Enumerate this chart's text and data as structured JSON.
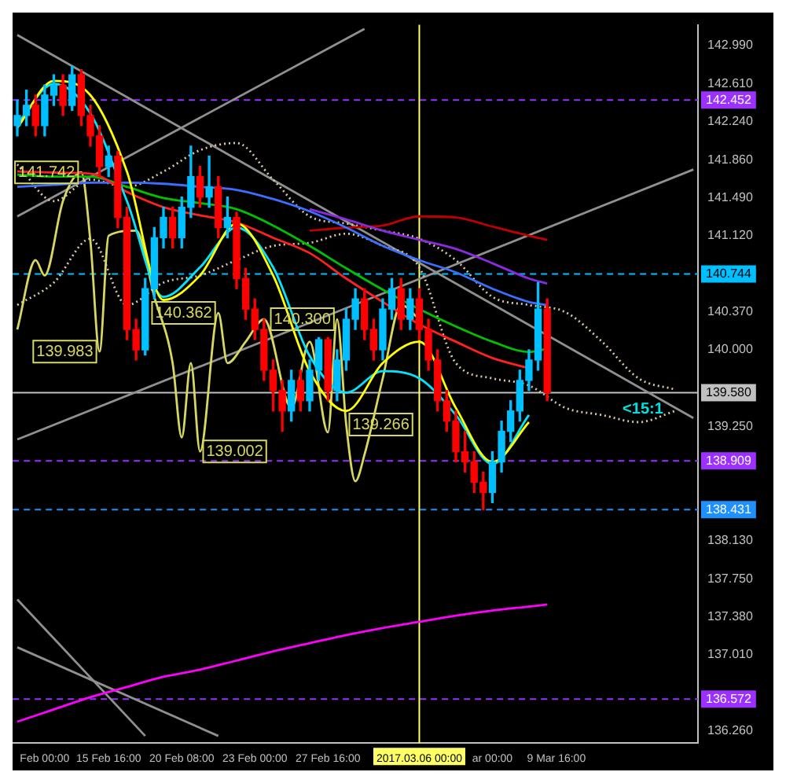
{
  "chart_data": {
    "type": "candlestick",
    "marker": "none",
    "categories": [
      null,
      null,
      null,
      "Feb 00:00",
      null,
      null,
      null,
      null,
      null,
      null,
      "15 Feb 16:00",
      null,
      null,
      null,
      null,
      null,
      null,
      null,
      "20 Feb 08:00",
      null,
      null,
      null,
      null,
      null,
      null,
      null,
      "23 Feb 00:00",
      null,
      null,
      null,
      null,
      null,
      null,
      null,
      "27 Feb 16:00",
      null,
      null,
      null,
      null,
      null,
      null,
      null,
      null,
      null,
      "2017.03.06 00:00",
      null,
      null,
      null,
      null,
      null,
      null,
      null,
      "ar 00:00",
      null,
      null,
      null,
      null,
      null,
      null,
      "9 Mar 16:00",
      null,
      null,
      null,
      null,
      null,
      null,
      null,
      null,
      null,
      null,
      null,
      null,
      null,
      null,
      null
    ],
    "ohlc": [
      [
        142.2,
        142.45,
        142.1,
        142.3
      ],
      [
        142.3,
        142.55,
        142.2,
        142.4
      ],
      [
        142.4,
        142.5,
        142.1,
        142.2
      ],
      [
        142.2,
        142.6,
        142.1,
        142.5
      ],
      [
        142.5,
        142.7,
        142.4,
        142.6
      ],
      [
        142.6,
        142.7,
        142.3,
        142.4
      ],
      [
        142.4,
        142.78,
        142.35,
        142.7
      ],
      [
        142.7,
        142.75,
        142.2,
        142.3
      ],
      [
        142.3,
        142.4,
        142.0,
        142.1
      ],
      [
        142.1,
        142.2,
        141.7,
        141.8
      ],
      [
        141.8,
        142.0,
        141.7,
        141.9
      ],
      [
        141.9,
        141.95,
        141.2,
        141.3
      ],
      [
        141.3,
        141.4,
        140.1,
        140.2
      ],
      [
        140.2,
        140.3,
        139.9,
        140.0
      ],
      [
        140.0,
        140.7,
        139.95,
        140.6
      ],
      [
        140.6,
        141.2,
        140.5,
        141.1
      ],
      [
        141.1,
        141.4,
        141.0,
        141.3
      ],
      [
        141.3,
        141.4,
        141.0,
        141.1
      ],
      [
        141.1,
        141.5,
        141.0,
        141.4
      ],
      [
        141.4,
        142.0,
        141.3,
        141.7
      ],
      [
        141.7,
        141.8,
        141.4,
        141.5
      ],
      [
        141.5,
        141.9,
        141.4,
        141.6
      ],
      [
        141.6,
        141.7,
        141.1,
        141.2
      ],
      [
        141.2,
        141.5,
        141.1,
        141.3
      ],
      [
        141.3,
        141.35,
        140.6,
        140.7
      ],
      [
        140.7,
        140.8,
        140.3,
        140.4
      ],
      [
        140.4,
        140.5,
        140.1,
        140.2
      ],
      [
        140.2,
        140.3,
        139.7,
        139.8
      ],
      [
        139.8,
        139.9,
        139.4,
        139.6
      ],
      [
        139.6,
        139.7,
        139.2,
        139.4
      ],
      [
        139.4,
        139.8,
        139.3,
        139.7
      ],
      [
        139.7,
        139.8,
        139.4,
        139.5
      ],
      [
        139.5,
        139.9,
        139.4,
        139.8
      ],
      [
        139.8,
        140.12,
        139.7,
        140.1
      ],
      [
        140.1,
        140.12,
        139.5,
        139.6
      ],
      [
        139.6,
        140.0,
        139.5,
        139.9
      ],
      [
        139.9,
        140.4,
        139.8,
        140.3
      ],
      [
        140.3,
        140.6,
        140.2,
        140.5
      ],
      [
        140.5,
        140.6,
        140.1,
        140.2
      ],
      [
        140.2,
        140.3,
        139.9,
        140.0
      ],
      [
        140.0,
        140.5,
        139.9,
        140.4
      ],
      [
        140.4,
        140.7,
        140.3,
        140.6
      ],
      [
        140.6,
        140.7,
        140.2,
        140.3
      ],
      [
        140.3,
        140.6,
        140.2,
        140.5
      ],
      [
        140.5,
        140.6,
        140.1,
        140.2
      ],
      [
        140.2,
        140.3,
        139.8,
        139.9
      ],
      [
        139.9,
        140.0,
        139.4,
        139.5
      ],
      [
        139.5,
        139.6,
        139.2,
        139.3
      ],
      [
        139.3,
        139.4,
        138.9,
        139.0
      ],
      [
        139.0,
        139.2,
        138.8,
        138.9
      ],
      [
        138.9,
        139.0,
        138.6,
        138.7
      ],
      [
        138.7,
        138.8,
        138.431,
        138.6
      ],
      [
        138.6,
        139.0,
        138.5,
        138.9
      ],
      [
        138.9,
        139.3,
        138.8,
        139.2
      ],
      [
        139.2,
        139.5,
        139.1,
        139.4
      ],
      [
        139.4,
        139.8,
        139.3,
        139.7
      ],
      [
        139.7,
        140.0,
        139.6,
        139.9
      ],
      [
        139.9,
        140.66,
        139.8,
        140.4
      ],
      [
        140.4,
        140.5,
        139.5,
        139.58
      ],
      null,
      null,
      null,
      null,
      null,
      null,
      null,
      null,
      null,
      null,
      null,
      null,
      null,
      null,
      null,
      null
    ],
    "colors": [
      "#00bfff",
      "#00bfff",
      "#ff0000",
      "#00bfff",
      "#00bfff",
      "#ff0000",
      "#00bfff",
      "#ff0000",
      "#ff0000",
      "#ff0000",
      "#00bfff",
      "#ff0000",
      "#ff0000",
      "#ff0000",
      "#00bfff",
      "#00bfff",
      "#00bfff",
      "#ff0000",
      "#00bfff",
      "#00bfff",
      "#ff0000",
      "#00bfff",
      "#ff0000",
      "#00bfff",
      "#ff0000",
      "#ff0000",
      "#ff0000",
      "#ff0000",
      "#ff0000",
      "#ff0000",
      "#00bfff",
      "#ff0000",
      "#00bfff",
      "#00bfff",
      "#ff0000",
      "#00bfff",
      "#00bfff",
      "#00bfff",
      "#ff0000",
      "#ff0000",
      "#00bfff",
      "#00bfff",
      "#ff0000",
      "#00bfff",
      "#ff0000",
      "#ff0000",
      "#ff0000",
      "#ff0000",
      "#ff0000",
      "#ff0000",
      "#ff0000",
      "#ff0000",
      "#00bfff",
      "#00bfff",
      "#00bfff",
      "#00bfff",
      "#00bfff",
      "#00bfff",
      "#ff0000",
      null,
      null,
      null,
      null,
      null,
      null,
      null,
      null,
      null,
      null,
      null,
      null,
      null,
      null,
      null,
      null
    ],
    "series": [
      {
        "type": "line",
        "color": "#ffff00",
        "values": [
          142.18,
          null,
          null,
          null,
          142.64,
          null,
          null,
          null,
          142.5,
          null,
          null,
          null,
          141.75,
          null,
          null,
          null,
          140.49,
          null,
          null,
          null,
          140.73,
          null,
          null,
          null,
          141.24,
          null,
          null,
          null,
          140.73,
          null,
          null,
          null,
          139.79,
          null,
          null,
          null,
          139.4,
          null,
          null,
          null,
          139.87,
          null,
          null,
          null,
          140.08,
          null,
          null,
          null,
          139.43,
          null,
          null,
          null,
          138.9,
          null,
          null,
          null,
          139.29,
          null,
          null,
          null,
          null,
          null,
          null,
          null,
          null,
          null,
          null,
          null,
          null,
          null,
          null,
          null,
          null,
          null,
          null
        ]
      },
      {
        "type": "line",
        "color": "#00e5ff",
        "values": [
          142.22,
          null,
          null,
          null,
          142.61,
          null,
          null,
          null,
          142.32,
          null,
          null,
          null,
          141.46,
          null,
          null,
          null,
          140.52,
          null,
          null,
          null,
          140.81,
          null,
          null,
          null,
          141.2,
          null,
          null,
          null,
          140.81,
          null,
          null,
          null,
          139.94,
          null,
          null,
          null,
          139.58,
          null,
          null,
          null,
          139.79,
          null,
          null,
          null,
          139.72,
          null,
          null,
          null,
          139.36,
          null,
          null,
          null,
          138.88,
          null,
          null,
          null,
          139.36,
          null,
          null,
          null,
          null,
          null,
          null,
          null,
          null,
          null,
          null,
          null,
          null,
          null,
          null,
          null,
          null,
          null,
          null
        ]
      },
      {
        "type": "line",
        "color": "#ff2020",
        "values": [
          141.75,
          null,
          null,
          null,
          141.74,
          null,
          null,
          null,
          141.73,
          null,
          null,
          null,
          141.55,
          null,
          null,
          null,
          141.4,
          null,
          null,
          null,
          141.32,
          null,
          null,
          null,
          141.25,
          null,
          null,
          null,
          141.1,
          null,
          null,
          null,
          140.95,
          null,
          null,
          null,
          140.7,
          null,
          null,
          null,
          140.47,
          null,
          null,
          null,
          140.25,
          null,
          null,
          null,
          140.08,
          null,
          null,
          null,
          139.92,
          null,
          null,
          null,
          139.82,
          null,
          null,
          null,
          null,
          null,
          null,
          null,
          null,
          null,
          null,
          null,
          null,
          null,
          null,
          null,
          null,
          null,
          null
        ]
      },
      {
        "type": "line",
        "color": "#00c000",
        "values": [
          141.72,
          null,
          null,
          null,
          141.7,
          null,
          null,
          null,
          141.7,
          null,
          null,
          null,
          141.6,
          null,
          null,
          null,
          141.49,
          null,
          null,
          null,
          141.44,
          null,
          null,
          null,
          141.38,
          null,
          null,
          null,
          141.22,
          null,
          null,
          null,
          141.02,
          null,
          null,
          null,
          140.8,
          null,
          null,
          null,
          140.59,
          null,
          null,
          null,
          140.4,
          null,
          null,
          null,
          140.23,
          null,
          null,
          null,
          140.08,
          null,
          null,
          null,
          139.98,
          null,
          140.01,
          null,
          null,
          null,
          null,
          null,
          null,
          null,
          null,
          null,
          null,
          null,
          null,
          null,
          null,
          null,
          null
        ]
      },
      {
        "type": "line",
        "color": "#3a6fff",
        "values": [
          141.6,
          null,
          null,
          null,
          141.62,
          null,
          null,
          null,
          141.64,
          null,
          null,
          null,
          141.64,
          null,
          null,
          null,
          141.63,
          null,
          null,
          null,
          141.6,
          null,
          null,
          null,
          141.57,
          null,
          null,
          null,
          141.48,
          null,
          null,
          null,
          141.36,
          null,
          null,
          null,
          141.2,
          null,
          null,
          null,
          141.02,
          null,
          null,
          null,
          140.88,
          null,
          null,
          null,
          140.76,
          null,
          null,
          null,
          140.6,
          null,
          null,
          null,
          140.47,
          null,
          140.44,
          null,
          null,
          null,
          null,
          null,
          null,
          null,
          null,
          null,
          null,
          null,
          null,
          null,
          null,
          null,
          null
        ]
      },
      {
        "type": "line",
        "color": "#8a2be2",
        "values": [
          null,
          null,
          null,
          null,
          null,
          null,
          null,
          null,
          null,
          null,
          null,
          null,
          null,
          null,
          null,
          null,
          null,
          null,
          null,
          null,
          null,
          null,
          null,
          null,
          null,
          null,
          null,
          null,
          null,
          null,
          null,
          null,
          141.38,
          null,
          null,
          null,
          141.28,
          null,
          null,
          null,
          141.17,
          null,
          null,
          null,
          141.08,
          null,
          null,
          null,
          140.99,
          null,
          null,
          null,
          140.85,
          null,
          null,
          null,
          140.7,
          null,
          140.65,
          null,
          null,
          null,
          null,
          null,
          null,
          null,
          null,
          null,
          null,
          null,
          null,
          null,
          null,
          null,
          null
        ]
      },
      {
        "type": "line",
        "color": "#c00000",
        "values": [
          null,
          null,
          null,
          null,
          null,
          null,
          null,
          null,
          null,
          null,
          null,
          null,
          null,
          null,
          null,
          null,
          null,
          null,
          null,
          null,
          null,
          null,
          null,
          null,
          null,
          null,
          null,
          null,
          null,
          null,
          null,
          null,
          141.17,
          null,
          null,
          null,
          141.2,
          null,
          null,
          null,
          141.22,
          null,
          null,
          null,
          141.31,
          null,
          null,
          null,
          141.3,
          null,
          null,
          null,
          141.21,
          null,
          null,
          null,
          141.12,
          null,
          141.08,
          null,
          null,
          null,
          null,
          null,
          null,
          null,
          null,
          null,
          null,
          null,
          null,
          null,
          null,
          null,
          null
        ]
      },
      {
        "type": "line",
        "color": "#ff00ff",
        "values": [
          136.35,
          null,
          null,
          null,
          136.47,
          null,
          null,
          null,
          136.59,
          null,
          null,
          null,
          136.69,
          null,
          null,
          null,
          136.79,
          null,
          null,
          null,
          136.86,
          null,
          null,
          null,
          136.95,
          null,
          null,
          null,
          137.04,
          null,
          null,
          null,
          137.12,
          null,
          null,
          null,
          137.2,
          null,
          null,
          null,
          137.27,
          null,
          null,
          null,
          137.33,
          null,
          null,
          null,
          137.39,
          null,
          null,
          null,
          137.44,
          null,
          null,
          null,
          137.48,
          null,
          137.5,
          null,
          null,
          null,
          null,
          null,
          null,
          null,
          null,
          null,
          null,
          null,
          null,
          null,
          null,
          null,
          null
        ]
      },
      {
        "type": "line",
        "color": "#d8c8a8",
        "line_style": "dotted",
        "values": [
          141.82,
          null,
          null,
          null,
          141.46,
          null,
          null,
          null,
          141.67,
          null,
          null,
          null,
          141.6,
          null,
          null,
          null,
          141.75,
          null,
          null,
          null,
          141.96,
          null,
          null,
          null,
          142.03,
          null,
          null,
          null,
          141.67,
          null,
          null,
          null,
          141.31,
          null,
          null,
          null,
          141.24,
          null,
          null,
          null,
          141.17,
          null,
          null,
          null,
          141.09,
          null,
          null,
          null,
          140.88,
          null,
          null,
          null,
          140.52,
          null,
          null,
          null,
          140.44,
          null,
          null,
          null,
          140.37,
          null,
          null,
          null,
          140.08,
          null,
          null,
          null,
          139.72,
          null,
          null,
          null,
          139.61,
          null,
          null
        ]
      },
      {
        "type": "line",
        "color": "#d8c8a8",
        "line_style": "dotted",
        "values": [
          140.44,
          null,
          null,
          null,
          140.66,
          null,
          null,
          null,
          141.09,
          null,
          null,
          null,
          140.44,
          null,
          null,
          null,
          140.66,
          null,
          null,
          null,
          140.73,
          null,
          null,
          null,
          140.88,
          null,
          null,
          null,
          141.02,
          null,
          null,
          null,
          141.05,
          null,
          null,
          null,
          141.14,
          null,
          null,
          null,
          141.02,
          null,
          null,
          null,
          140.81,
          null,
          null,
          null,
          139.87,
          null,
          null,
          null,
          139.72,
          null,
          null,
          null,
          139.65,
          null,
          null,
          null,
          139.43,
          null,
          null,
          null,
          139.36,
          null,
          null,
          null,
          139.29,
          null,
          null,
          null,
          139.4,
          null,
          null
        ]
      },
      {
        "type": "line",
        "color": "#d8d860",
        "values": [
          140.2,
          null,
          140.88,
          140.73,
          null,
          141.46,
          null,
          141.742,
          141.07,
          139.983,
          141.12,
          null,
          null,
          141.17,
          null,
          140.52,
          null,
          139.87,
          139.14,
          139.87,
          139.002,
          null,
          140.362,
          139.87,
          null,
          140.08,
          null,
          140.3,
          null,
          null,
          139.43,
          null,
          140.08,
          null,
          139.19,
          140.3,
          139.266,
          138.71,
          138.97,
          null,
          139.72,
          null,
          140.44,
          null,
          140.3,
          null,
          null,
          null,
          null,
          null,
          null,
          null,
          null,
          null,
          null,
          null,
          null,
          null,
          null,
          null,
          null,
          null,
          null,
          null,
          null,
          null,
          null,
          null,
          null,
          null,
          null,
          null,
          null,
          null,
          null
        ],
        "value_labels": [
          null,
          null,
          null,
          null,
          null,
          null,
          null,
          "141.742",
          null,
          "139.983",
          null,
          null,
          null,
          null,
          null,
          null,
          null,
          null,
          null,
          null,
          "139.002",
          null,
          "140.362",
          null,
          null,
          null,
          null,
          null,
          null,
          null,
          null,
          null,
          null,
          null,
          null,
          "140.300",
          "139.266",
          null,
          null,
          null,
          null,
          null,
          null,
          null,
          null,
          null,
          null,
          null,
          null,
          null,
          null,
          null,
          null,
          null,
          null,
          null,
          null,
          null,
          null,
          null,
          null,
          null,
          null,
          null,
          null,
          null,
          null,
          null,
          null,
          null,
          null,
          null,
          null,
          null,
          null
        ]
      },
      {
        "type": "line",
        "color": "#909090",
        "values": [
          143.09,
          null,
          null,
          null,
          null,
          null,
          null,
          null,
          null,
          null,
          null,
          null,
          null,
          null,
          null,
          null,
          null,
          null,
          null,
          null,
          null,
          null,
          null,
          null,
          null,
          null,
          null,
          null,
          null,
          null,
          null,
          null,
          null,
          null,
          null,
          null,
          null,
          null,
          null,
          null,
          null,
          null,
          null,
          null,
          null,
          null,
          null,
          null,
          null,
          null,
          null,
          null,
          null,
          null,
          null,
          null,
          null,
          null,
          null,
          null,
          null,
          null,
          null,
          null,
          null,
          null,
          null,
          null,
          null,
          null,
          null,
          null,
          null,
          null,
          139.33
        ]
      },
      {
        "type": "line",
        "color": "#909090",
        "values": [
          139.12,
          null,
          null,
          null,
          null,
          null,
          null,
          null,
          null,
          null,
          null,
          null,
          null,
          null,
          null,
          null,
          null,
          null,
          null,
          null,
          null,
          null,
          null,
          null,
          null,
          null,
          null,
          null,
          null,
          null,
          null,
          null,
          null,
          null,
          null,
          null,
          null,
          null,
          null,
          null,
          null,
          null,
          null,
          null,
          null,
          null,
          null,
          null,
          null,
          null,
          null,
          null,
          null,
          null,
          null,
          null,
          null,
          null,
          null,
          null,
          null,
          null,
          null,
          null,
          null,
          null,
          null,
          null,
          null,
          null,
          null,
          null,
          null,
          null,
          141.77
        ]
      },
      {
        "type": "line",
        "color": "#909090",
        "values": [
          141.31,
          null,
          null,
          null,
          null,
          null,
          null,
          null,
          null,
          null,
          null,
          null,
          null,
          null,
          null,
          null,
          null,
          null,
          null,
          null,
          null,
          null,
          null,
          null,
          null,
          null,
          null,
          null,
          null,
          null,
          null,
          null,
          null,
          null,
          null,
          null,
          null,
          null,
          143.15,
          null,
          null,
          null,
          null,
          null,
          null,
          null,
          null,
          null,
          null,
          null,
          null,
          null,
          null,
          null,
          null,
          null,
          null,
          null,
          null,
          null,
          null,
          null,
          null,
          null,
          null,
          null,
          null,
          null,
          null,
          null,
          null,
          null,
          null,
          null,
          null
        ]
      },
      {
        "type": "line",
        "color": "#909090",
        "values": [
          137.55,
          null,
          null,
          null,
          null,
          null,
          null,
          null,
          null,
          null,
          null,
          null,
          null,
          null,
          136.21,
          null,
          null,
          null,
          null,
          null,
          null,
          null,
          null,
          null,
          null,
          null,
          null,
          null,
          null,
          null,
          null,
          null,
          null,
          null,
          null,
          null,
          null,
          null,
          null,
          null,
          null,
          null,
          null,
          null,
          null,
          null,
          null,
          null,
          null,
          null,
          null,
          null,
          null,
          null,
          null,
          null,
          null,
          null,
          null,
          null,
          null,
          null,
          null,
          null,
          null,
          null,
          null,
          null,
          null,
          null,
          null,
          null,
          null,
          null,
          null
        ]
      },
      {
        "type": "line",
        "color": "#909090",
        "values": [
          137.08,
          null,
          null,
          null,
          null,
          null,
          null,
          null,
          null,
          null,
          null,
          null,
          null,
          null,
          null,
          null,
          null,
          null,
          null,
          null,
          null,
          null,
          136.21,
          null,
          null,
          null,
          null,
          null,
          null,
          null,
          null,
          null,
          null,
          null,
          null,
          null,
          null,
          null,
          null,
          null,
          null,
          null,
          null,
          null,
          null,
          null,
          null,
          null,
          null,
          null,
          null,
          null,
          null,
          null,
          null,
          null,
          null,
          null,
          null,
          null,
          null,
          null,
          null,
          null,
          null,
          null,
          null,
          null,
          null,
          null,
          null,
          null,
          null,
          null,
          null
        ]
      }
    ],
    "ylim": [
      136.14,
      143.19
    ],
    "yticks": [
      {
        "value": 142.99,
        "label": "142.990"
      },
      {
        "value": 142.61,
        "label": "142.610"
      },
      {
        "value": 142.24,
        "label": "142.240"
      },
      {
        "value": 141.86,
        "label": "141.860"
      },
      {
        "value": 141.49,
        "label": "141.490"
      },
      {
        "value": 141.12,
        "label": "141.120"
      },
      {
        "value": 140.37,
        "label": "140.370"
      },
      {
        "value": 140.0,
        "label": "140.000"
      },
      {
        "value": 139.25,
        "label": "139.250"
      },
      {
        "value": 138.13,
        "label": "138.130"
      },
      {
        "value": 137.75,
        "label": "137.750"
      },
      {
        "value": 137.38,
        "label": "137.380"
      },
      {
        "value": 137.01,
        "label": "137.010"
      },
      {
        "value": 136.26,
        "label": "136.260"
      }
    ],
    "ref_lines": [
      {
        "axis": "y",
        "value": 142.452,
        "label": "142.452",
        "color": "#9b30ff",
        "line_style": "dashed"
      },
      {
        "axis": "y",
        "value": 140.744,
        "label": "140.744",
        "color": "#00bfff",
        "line_style": "dashed"
      },
      {
        "axis": "y",
        "value": 139.58,
        "label": "139.580",
        "color": "#c0c0c0",
        "line_style": "solid"
      },
      {
        "axis": "y",
        "value": 138.909,
        "label": "138.909",
        "color": "#9b30ff",
        "line_style": "dashed"
      },
      {
        "axis": "y",
        "value": 138.431,
        "label": "138.431",
        "color": "#1e90ff",
        "line_style": "dashed"
      },
      {
        "axis": "y",
        "value": 136.572,
        "label": "136.572",
        "color": "#9b30ff",
        "line_style": "dashed"
      },
      {
        "axis": "x",
        "value": "2017.03.06 00:00",
        "color": "#ffff66",
        "line_style": "solid"
      }
    ],
    "annotations": [
      "<15:1"
    ]
  }
}
